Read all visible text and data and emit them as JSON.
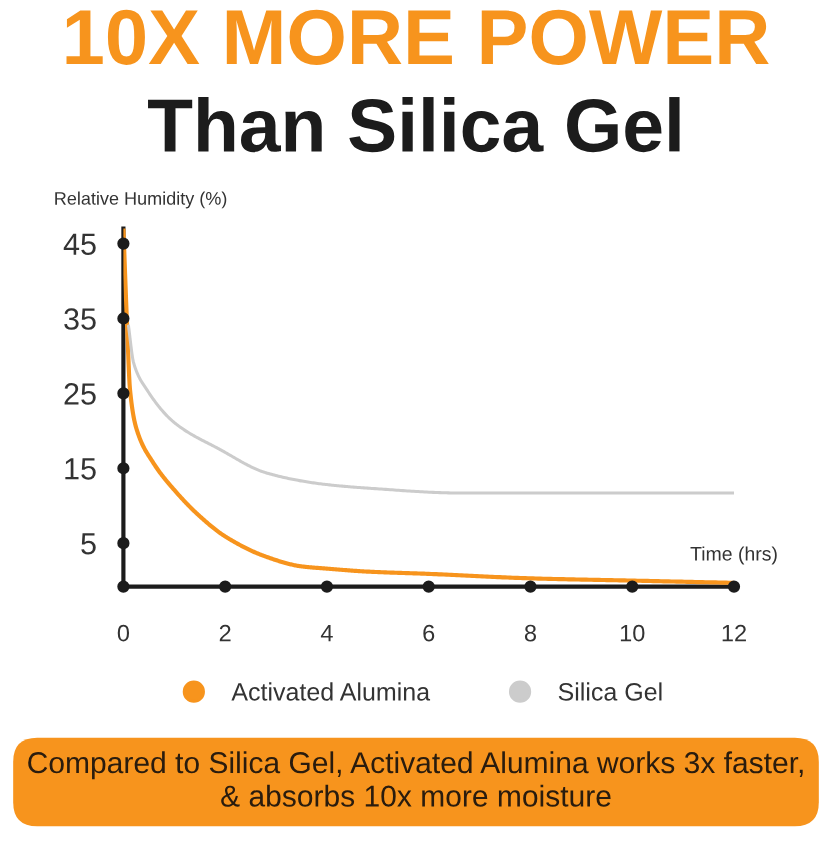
{
  "chart_data": {
    "type": "line",
    "title": "10X MORE POWER",
    "subtitle": "Than Silica Gel",
    "xlabel": "Time (hrs)",
    "ylabel": "Relative Humidity (%)",
    "annotations": [
      "Compared to Silica Gel, Activated Alumina works 3x faster,\n& absorbs 10x more moisture"
    ],
    "xlim": [
      0,
      12
    ],
    "xticks": [
      0,
      2,
      4,
      6,
      8,
      10,
      12
    ],
    "ylim": [
      -0.8,
      47
    ],
    "yticks": [
      5,
      15,
      25,
      35,
      45
    ],
    "legend": "bottom",
    "series": [
      {
        "name": "Activated Alumina",
        "color": "#f7941d",
        "x": [
          0,
          0.07,
          0.13,
          0.26,
          0.59,
          1,
          1.5,
          2,
          2.8,
          3.5,
          4,
          4.8,
          6,
          8,
          10,
          12
        ],
        "values": [
          47,
          34.5,
          25.5,
          20.2,
          15.7,
          12.1,
          8.6,
          5.9,
          3.2,
          1.9,
          1.6,
          1.2,
          0.9,
          0.3,
          0,
          -0.3
        ]
      },
      {
        "name": "Silica Gel",
        "color": "#cccccc",
        "x": [
          0.1,
          0.2,
          0.46,
          1,
          1.9,
          2.8,
          3.9,
          4.9,
          6.6,
          8,
          12
        ],
        "values": [
          34,
          29.1,
          25.5,
          21.1,
          17.5,
          14.4,
          12.9,
          12.3,
          11.7,
          11.7,
          11.7
        ]
      }
    ]
  }
}
